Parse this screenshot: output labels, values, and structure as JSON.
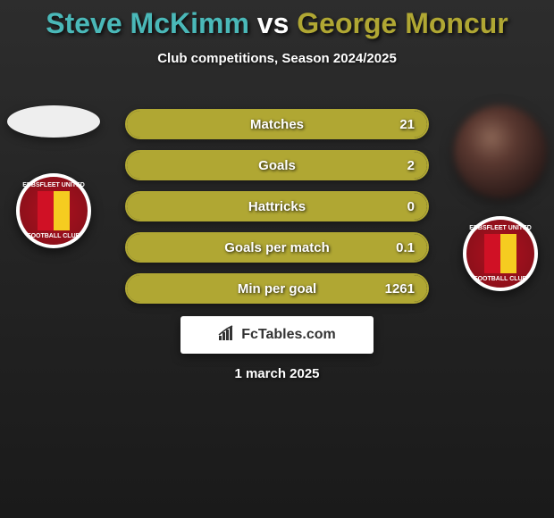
{
  "title": {
    "player1": "Steve McKimm",
    "vs": "vs",
    "player2": "George Moncur",
    "color1": "#4ab8b8",
    "color_vs": "#ffffff",
    "color2": "#b0a733"
  },
  "subtitle": "Club competitions, Season 2024/2025",
  "brand": {
    "label": "FcTables.com"
  },
  "date": "1 march 2025",
  "colors": {
    "p1_bar": "#4ab8b8",
    "p2_bar": "#b0a733",
    "border": "#b0a733"
  },
  "badge": {
    "top_text": "EBBSFLEET UNITED",
    "bottom_text": "FOOTBALL CLUB"
  },
  "stats": [
    {
      "label": "Matches",
      "v1": "",
      "v2": "21",
      "p1_pct": 0,
      "p2_pct": 100
    },
    {
      "label": "Goals",
      "v1": "",
      "v2": "2",
      "p1_pct": 0,
      "p2_pct": 100
    },
    {
      "label": "Hattricks",
      "v1": "",
      "v2": "0",
      "p1_pct": 0,
      "p2_pct": 100
    },
    {
      "label": "Goals per match",
      "v1": "",
      "v2": "0.1",
      "p1_pct": 0,
      "p2_pct": 100
    },
    {
      "label": "Min per goal",
      "v1": "",
      "v2": "1261",
      "p1_pct": 0,
      "p2_pct": 100
    }
  ]
}
